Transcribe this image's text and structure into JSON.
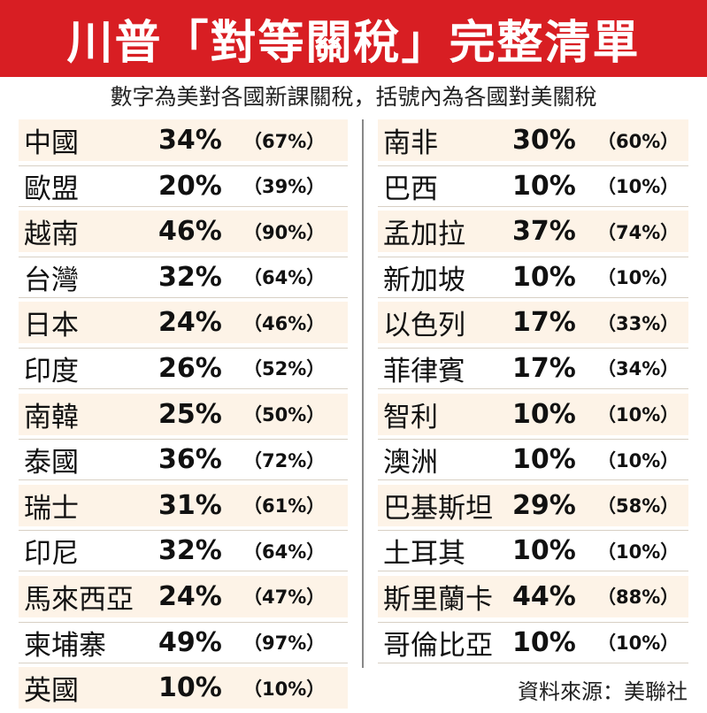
{
  "title": "川普「對等關稅」完整清單",
  "subtitle": "數字為美對各國新課關稅，括號內為各國對美關稅",
  "source": "資料來源：美聯社",
  "colors": {
    "title_bg": "#d81e23",
    "title_text": "#ffffff",
    "row_alt": "#fdf3e7"
  },
  "chart_data": {
    "type": "table",
    "columns": [
      "country",
      "us_tariff",
      "tariff_on_us"
    ],
    "left": [
      {
        "country": "中國",
        "rate": "34%",
        "recip": "（67%）"
      },
      {
        "country": "歐盟",
        "rate": "20%",
        "recip": "（39%）"
      },
      {
        "country": "越南",
        "rate": "46%",
        "recip": "（90%）"
      },
      {
        "country": "台灣",
        "rate": "32%",
        "recip": "（64%）"
      },
      {
        "country": "日本",
        "rate": "24%",
        "recip": "（46%）"
      },
      {
        "country": "印度",
        "rate": "26%",
        "recip": "（52%）"
      },
      {
        "country": "南韓",
        "rate": "25%",
        "recip": "（50%）"
      },
      {
        "country": "泰國",
        "rate": "36%",
        "recip": "（72%）"
      },
      {
        "country": "瑞士",
        "rate": "31%",
        "recip": "（61%）"
      },
      {
        "country": "印尼",
        "rate": "32%",
        "recip": "（64%）"
      },
      {
        "country": "馬來西亞",
        "rate": "24%",
        "recip": "（47%）"
      },
      {
        "country": "柬埔寨",
        "rate": "49%",
        "recip": "（97%）"
      },
      {
        "country": "英國",
        "rate": "10%",
        "recip": "（10%）"
      }
    ],
    "right": [
      {
        "country": "南非",
        "rate": "30%",
        "recip": "（60%）"
      },
      {
        "country": "巴西",
        "rate": "10%",
        "recip": "（10%）"
      },
      {
        "country": "孟加拉",
        "rate": "37%",
        "recip": "（74%）"
      },
      {
        "country": "新加坡",
        "rate": "10%",
        "recip": "（10%）"
      },
      {
        "country": "以色列",
        "rate": "17%",
        "recip": "（33%）"
      },
      {
        "country": "菲律賓",
        "rate": "17%",
        "recip": "（34%）"
      },
      {
        "country": "智利",
        "rate": "10%",
        "recip": "（10%）"
      },
      {
        "country": "澳洲",
        "rate": "10%",
        "recip": "（10%）"
      },
      {
        "country": "巴基斯坦",
        "rate": "29%",
        "recip": "（58%）"
      },
      {
        "country": "土耳其",
        "rate": "10%",
        "recip": "（10%）"
      },
      {
        "country": "斯里蘭卡",
        "rate": "44%",
        "recip": "（88%）"
      },
      {
        "country": "哥倫比亞",
        "rate": "10%",
        "recip": "（10%）"
      }
    ]
  }
}
